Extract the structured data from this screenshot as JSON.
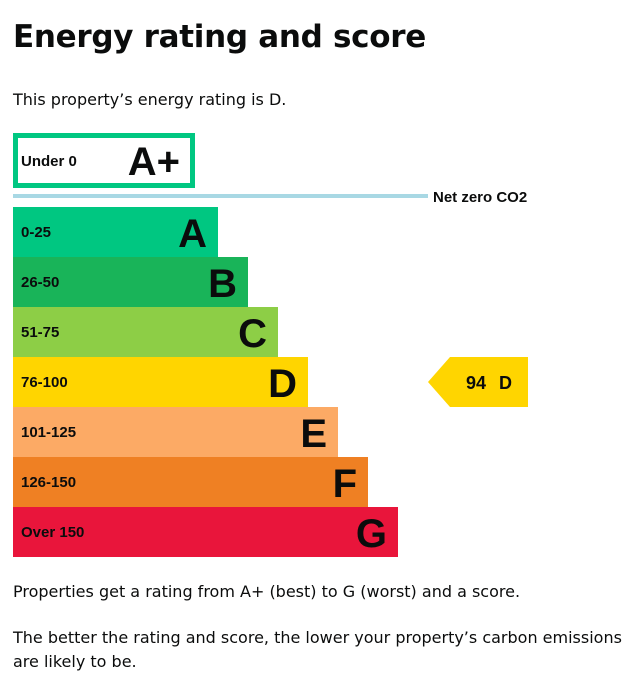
{
  "page": {
    "title": "Energy rating and score",
    "intro": "This property’s energy rating is D.",
    "paragraph_1": "Properties get a rating from A+ (best) to G (worst) and a score.",
    "paragraph_2": "The better the rating and score, the lower your property’s carbon emissions are likely to be."
  },
  "chart_data": {
    "type": "bar",
    "categories": [
      "A+",
      "A",
      "B",
      "C",
      "D",
      "E",
      "F",
      "G"
    ],
    "range_labels": [
      "Under 0",
      "0-25",
      "26-50",
      "51-75",
      "76-100",
      "101-125",
      "126-150",
      "Over 150"
    ],
    "colors": [
      "#00c781",
      "#00c781",
      "#19b459",
      "#8dce46",
      "#ffd500",
      "#fcaa65",
      "#ef8023",
      "#e9153b"
    ],
    "aplus_style": "outlined",
    "net_zero_label": "Net zero CO2",
    "net_zero_line_color": "#a8d8e4",
    "current_rating": {
      "score": 94,
      "band": "D",
      "score_text": "94",
      "band_text": "D",
      "color": "#ffd500"
    }
  }
}
